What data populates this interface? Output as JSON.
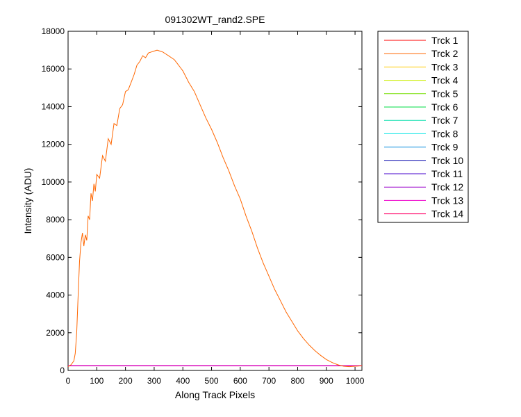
{
  "chart_data": {
    "type": "line",
    "title": "091302WT_rand2.SPE",
    "xlabel": "Along Track Pixels",
    "ylabel": "Intensity (ADU)",
    "xlim": [
      0,
      1024
    ],
    "ylim": [
      0,
      18000
    ],
    "xticks": [
      0,
      100,
      200,
      300,
      400,
      500,
      600,
      700,
      800,
      900,
      1000
    ],
    "yticks": [
      0,
      2000,
      4000,
      6000,
      8000,
      10000,
      12000,
      14000,
      16000,
      18000
    ],
    "grid": false,
    "legend_position": "outside-right",
    "series": [
      {
        "name": "Trck 1",
        "color": "#ff0000",
        "x": [
          0,
          1024
        ],
        "y": [
          250,
          250
        ]
      },
      {
        "name": "Trck 2",
        "color": "#ff6600",
        "x": [
          0,
          10,
          20,
          25,
          30,
          35,
          40,
          45,
          50,
          55,
          60,
          65,
          70,
          75,
          80,
          85,
          90,
          95,
          100,
          110,
          120,
          130,
          140,
          150,
          160,
          170,
          180,
          190,
          200,
          210,
          220,
          230,
          240,
          250,
          260,
          270,
          280,
          290,
          300,
          310,
          320,
          330,
          340,
          350,
          360,
          370,
          380,
          390,
          400,
          420,
          440,
          460,
          480,
          500,
          520,
          540,
          560,
          580,
          600,
          620,
          640,
          660,
          680,
          700,
          720,
          740,
          760,
          780,
          800,
          820,
          840,
          860,
          880,
          900,
          920,
          940,
          960,
          980,
          1000,
          1010,
          1024
        ],
        "y": [
          200,
          300,
          500,
          900,
          2000,
          4000,
          5800,
          6800,
          7300,
          6600,
          7200,
          6900,
          8200,
          8000,
          9400,
          9000,
          9900,
          9500,
          10400,
          10200,
          11400,
          11100,
          12300,
          12000,
          13100,
          13000,
          13900,
          14100,
          14800,
          14900,
          15300,
          15700,
          16200,
          16400,
          16700,
          16600,
          16850,
          16900,
          16950,
          17000,
          16950,
          16900,
          16800,
          16700,
          16600,
          16500,
          16300,
          16100,
          15900,
          15300,
          14800,
          14100,
          13400,
          12800,
          12100,
          11300,
          10600,
          9800,
          9100,
          8200,
          7400,
          6500,
          5700,
          5000,
          4300,
          3700,
          3100,
          2600,
          2100,
          1700,
          1350,
          1050,
          800,
          580,
          420,
          300,
          220,
          200,
          220,
          230,
          250
        ]
      },
      {
        "name": "Trck 3",
        "color": "#ffcc00",
        "x": [
          0,
          1024
        ],
        "y": [
          250,
          250
        ]
      },
      {
        "name": "Trck 4",
        "color": "#ccee00",
        "x": [
          0,
          1024
        ],
        "y": [
          250,
          250
        ]
      },
      {
        "name": "Trck 5",
        "color": "#77dd00",
        "x": [
          0,
          1024
        ],
        "y": [
          250,
          250
        ]
      },
      {
        "name": "Trck 6",
        "color": "#00dd44",
        "x": [
          0,
          1024
        ],
        "y": [
          250,
          250
        ]
      },
      {
        "name": "Trck 7",
        "color": "#00ddaa",
        "x": [
          0,
          1024
        ],
        "y": [
          250,
          250
        ]
      },
      {
        "name": "Trck 8",
        "color": "#00e5e5",
        "x": [
          0,
          1024
        ],
        "y": [
          250,
          250
        ]
      },
      {
        "name": "Trck 9",
        "color": "#0088dd",
        "x": [
          0,
          1024
        ],
        "y": [
          250,
          250
        ]
      },
      {
        "name": "Trck 10",
        "color": "#0000aa",
        "x": [
          0,
          1024
        ],
        "y": [
          250,
          250
        ]
      },
      {
        "name": "Trck 11",
        "color": "#4400cc",
        "x": [
          0,
          1024
        ],
        "y": [
          250,
          250
        ]
      },
      {
        "name": "Trck 12",
        "color": "#9900cc",
        "x": [
          0,
          1024
        ],
        "y": [
          250,
          250
        ]
      },
      {
        "name": "Trck 13",
        "color": "#ee00cc",
        "x": [
          0,
          1024
        ],
        "y": [
          250,
          250
        ]
      },
      {
        "name": "Trck 14",
        "color": "#ff0066",
        "x": [
          0,
          1024
        ],
        "y": [
          250,
          250
        ]
      }
    ]
  }
}
